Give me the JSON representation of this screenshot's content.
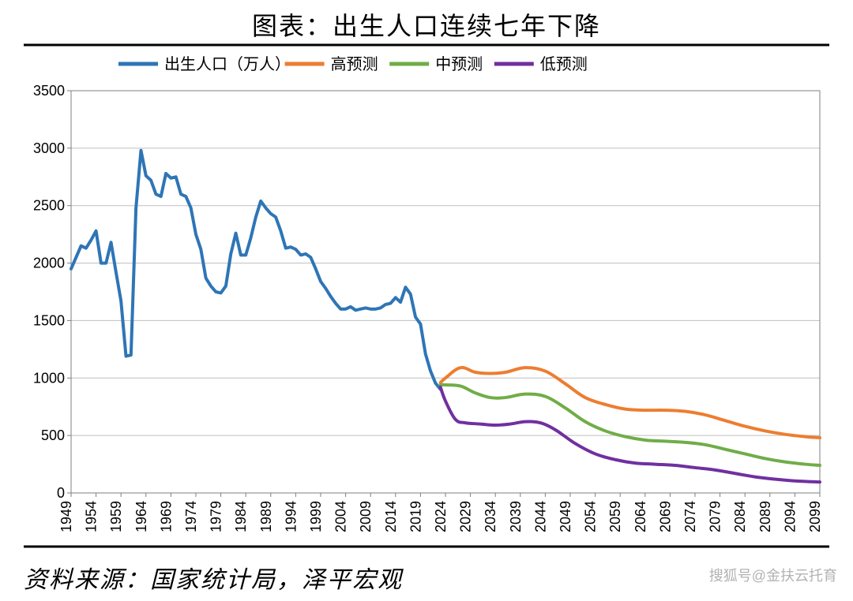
{
  "title": "图表：出生人口连续七年下降",
  "title_fontsize": 32,
  "source": "资料来源：国家统计局，泽平宏观",
  "source_fontsize": 30,
  "watermark": "搜狐号@金扶云托育",
  "chart": {
    "type": "line",
    "background_color": "#ffffff",
    "grid_color": "#bfbfbf",
    "axis_color": "#7f7f7f",
    "y": {
      "min": 0,
      "max": 3500,
      "step": 500,
      "tick_fontsize": 18
    },
    "x": {
      "min": 1949,
      "max": 2099,
      "tick_step": 5,
      "tick_fontsize": 18,
      "rotate": -90
    },
    "legend": {
      "fontsize": 20,
      "items": [
        {
          "label": "出生人口（万人）",
          "color": "#2e75b6"
        },
        {
          "label": "高预测",
          "color": "#ed7d31"
        },
        {
          "label": "中预测",
          "color": "#70ad47"
        },
        {
          "label": "低预测",
          "color": "#7030a0"
        }
      ]
    },
    "line_width": 4,
    "series": {
      "historical": {
        "color": "#2e75b6",
        "data": [
          [
            1949,
            1950
          ],
          [
            1950,
            2050
          ],
          [
            1951,
            2150
          ],
          [
            1952,
            2130
          ],
          [
            1953,
            2200
          ],
          [
            1954,
            2280
          ],
          [
            1955,
            2000
          ],
          [
            1956,
            2000
          ],
          [
            1957,
            2180
          ],
          [
            1958,
            1920
          ],
          [
            1959,
            1670
          ],
          [
            1960,
            1190
          ],
          [
            1961,
            1200
          ],
          [
            1962,
            2480
          ],
          [
            1963,
            2980
          ],
          [
            1964,
            2760
          ],
          [
            1965,
            2720
          ],
          [
            1966,
            2600
          ],
          [
            1967,
            2580
          ],
          [
            1968,
            2780
          ],
          [
            1969,
            2740
          ],
          [
            1970,
            2750
          ],
          [
            1971,
            2600
          ],
          [
            1972,
            2580
          ],
          [
            1973,
            2480
          ],
          [
            1974,
            2250
          ],
          [
            1975,
            2120
          ],
          [
            1976,
            1870
          ],
          [
            1977,
            1800
          ],
          [
            1978,
            1750
          ],
          [
            1979,
            1740
          ],
          [
            1980,
            1800
          ],
          [
            1981,
            2080
          ],
          [
            1982,
            2260
          ],
          [
            1983,
            2070
          ],
          [
            1984,
            2070
          ],
          [
            1985,
            2220
          ],
          [
            1986,
            2400
          ],
          [
            1987,
            2540
          ],
          [
            1988,
            2480
          ],
          [
            1989,
            2430
          ],
          [
            1990,
            2400
          ],
          [
            1991,
            2280
          ],
          [
            1992,
            2130
          ],
          [
            1993,
            2140
          ],
          [
            1994,
            2120
          ],
          [
            1995,
            2070
          ],
          [
            1996,
            2080
          ],
          [
            1997,
            2050
          ],
          [
            1998,
            1950
          ],
          [
            1999,
            1840
          ],
          [
            2000,
            1780
          ],
          [
            2001,
            1710
          ],
          [
            2002,
            1650
          ],
          [
            2003,
            1600
          ],
          [
            2004,
            1600
          ],
          [
            2005,
            1620
          ],
          [
            2006,
            1590
          ],
          [
            2007,
            1600
          ],
          [
            2008,
            1610
          ],
          [
            2009,
            1600
          ],
          [
            2010,
            1600
          ],
          [
            2011,
            1610
          ],
          [
            2012,
            1640
          ],
          [
            2013,
            1650
          ],
          [
            2014,
            1700
          ],
          [
            2015,
            1660
          ],
          [
            2016,
            1790
          ],
          [
            2017,
            1730
          ],
          [
            2018,
            1530
          ],
          [
            2019,
            1470
          ],
          [
            2020,
            1210
          ],
          [
            2021,
            1062
          ],
          [
            2022,
            956
          ],
          [
            2023,
            902
          ]
        ]
      },
      "high": {
        "color": "#ed7d31",
        "data": [
          [
            2023,
            960
          ],
          [
            2024,
            1000
          ],
          [
            2027,
            1090
          ],
          [
            2030,
            1050
          ],
          [
            2033,
            1040
          ],
          [
            2036,
            1050
          ],
          [
            2040,
            1090
          ],
          [
            2044,
            1060
          ],
          [
            2048,
            950
          ],
          [
            2052,
            830
          ],
          [
            2056,
            770
          ],
          [
            2060,
            730
          ],
          [
            2064,
            720
          ],
          [
            2068,
            720
          ],
          [
            2072,
            710
          ],
          [
            2076,
            680
          ],
          [
            2080,
            630
          ],
          [
            2084,
            580
          ],
          [
            2088,
            540
          ],
          [
            2092,
            510
          ],
          [
            2096,
            490
          ],
          [
            2099,
            480
          ]
        ]
      },
      "mid": {
        "color": "#70ad47",
        "data": [
          [
            2023,
            940
          ],
          [
            2024,
            940
          ],
          [
            2027,
            930
          ],
          [
            2030,
            870
          ],
          [
            2033,
            830
          ],
          [
            2036,
            830
          ],
          [
            2040,
            860
          ],
          [
            2044,
            840
          ],
          [
            2048,
            740
          ],
          [
            2052,
            620
          ],
          [
            2056,
            540
          ],
          [
            2060,
            490
          ],
          [
            2064,
            460
          ],
          [
            2068,
            450
          ],
          [
            2072,
            440
          ],
          [
            2076,
            420
          ],
          [
            2080,
            380
          ],
          [
            2084,
            340
          ],
          [
            2088,
            300
          ],
          [
            2092,
            270
          ],
          [
            2096,
            250
          ],
          [
            2099,
            240
          ]
        ]
      },
      "low": {
        "color": "#7030a0",
        "data": [
          [
            2023,
            920
          ],
          [
            2024,
            800
          ],
          [
            2026,
            640
          ],
          [
            2028,
            610
          ],
          [
            2031,
            600
          ],
          [
            2034,
            590
          ],
          [
            2037,
            600
          ],
          [
            2040,
            620
          ],
          [
            2043,
            610
          ],
          [
            2046,
            550
          ],
          [
            2050,
            430
          ],
          [
            2054,
            340
          ],
          [
            2058,
            290
          ],
          [
            2062,
            260
          ],
          [
            2066,
            250
          ],
          [
            2070,
            240
          ],
          [
            2074,
            220
          ],
          [
            2078,
            200
          ],
          [
            2082,
            170
          ],
          [
            2086,
            140
          ],
          [
            2090,
            120
          ],
          [
            2094,
            105
          ],
          [
            2099,
            95
          ]
        ]
      }
    }
  },
  "rules": {
    "color": "#000000",
    "thickness": 3
  }
}
